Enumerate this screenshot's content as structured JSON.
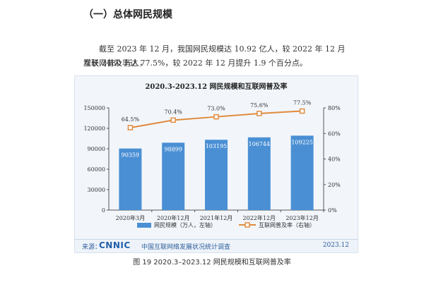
{
  "heading": "（一）总体网民规模",
  "paragraph_line1": "截至 2023 年 12 月，我国网民规模达 10.92 亿人，较 2022 年 12 月增长 2480 万人，",
  "paragraph_line2": "互联网普及率达 77.5%，较 2022 年 12 月提升 1.9 个百分点。",
  "chart_data": {
    "type": "bar",
    "title": "2020.3-2023.12 网民规模和互联网普及率",
    "categories": [
      "2020年3月",
      "2020年12月",
      "2021年12月",
      "2022年12月",
      "2023年12月"
    ],
    "series": [
      {
        "name": "网民规模（万人，左轴）",
        "type": "bar",
        "values": [
          90359,
          98899,
          103195,
          106744,
          109225
        ],
        "color": "#4a8fd4"
      },
      {
        "name": "互联网普及率（右轴）",
        "type": "line",
        "values": [
          64.5,
          70.4,
          73.0,
          75.6,
          77.5
        ],
        "labels": [
          "64.5%",
          "70.4%",
          "73.0%",
          "75.6%",
          "77.5%"
        ],
        "color": "#e08a3c"
      }
    ],
    "y_left": {
      "min": 0,
      "max": 150000,
      "ticks": [
        0,
        30000,
        60000,
        90000,
        120000,
        150000
      ],
      "tick_labels": [
        "0",
        "30000",
        "60000",
        "90000",
        "120000",
        "150000"
      ]
    },
    "y_right": {
      "min": 0,
      "max": 80,
      "ticks": [
        0,
        20,
        40,
        60,
        80
      ],
      "tick_labels": [
        "0%",
        "20%",
        "40%",
        "60%",
        "80%"
      ]
    },
    "legend_position": "bottom",
    "grid": false
  },
  "source_label": "来源：",
  "source_logo": "CNNIC",
  "source_text": "中国互联网络发展状况统计调查",
  "source_date": "2023.12",
  "caption": "图 19  2020.3–2023.12 网民规模和互联网普及率",
  "colors": {
    "bar": "#4a8fd4",
    "line": "#e08a3c",
    "panel": "#f2f6fb"
  }
}
